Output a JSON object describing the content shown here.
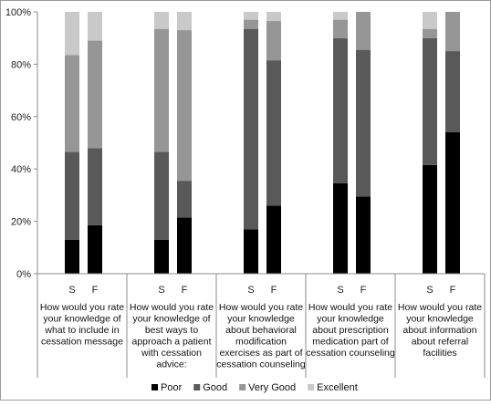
{
  "chart_data": {
    "type": "bar",
    "stacked": true,
    "y_axis": {
      "min": 0,
      "max": 100,
      "unit": "%",
      "ticks": [
        "0%",
        "20%",
        "40%",
        "60%",
        "80%",
        "100%"
      ]
    },
    "grid": false,
    "legend_position": "bottom",
    "groups": [
      {
        "label": [
          "How would you rate",
          "your knowledge of",
          "what to include in",
          "cessation message"
        ],
        "bars": [
          {
            "label": "S",
            "values": [
              13,
              33.5,
              37,
              16.5
            ]
          },
          {
            "label": "F",
            "values": [
              18.5,
              29.5,
              41,
              11
            ]
          }
        ]
      },
      {
        "label": [
          "How would you rate",
          "your knowledge of",
          "best ways to",
          "approach a patient",
          "with cessation",
          "advice:"
        ],
        "bars": [
          {
            "label": "S",
            "values": [
              13,
              33.5,
              47,
              6.5
            ]
          },
          {
            "label": "F",
            "values": [
              21.5,
              14,
              57.5,
              7
            ]
          }
        ]
      },
      {
        "label": [
          "How would you rate",
          "your knowledge",
          "about behavioral",
          "modification",
          "exercises as part of",
          "cessation counseling"
        ],
        "bars": [
          {
            "label": "S",
            "values": [
              17,
              76.5,
              3.5,
              3
            ]
          },
          {
            "label": "F",
            "values": [
              26,
              55.5,
              15,
              3.5
            ]
          }
        ]
      },
      {
        "label": [
          "How would you rate",
          "your knowledge",
          "about prescription",
          "medication part of",
          "cessation counseling"
        ],
        "bars": [
          {
            "label": "S",
            "values": [
              34.5,
              55.5,
              7,
              3
            ]
          },
          {
            "label": "F",
            "values": [
              29.5,
              56,
              14.5,
              0
            ]
          }
        ]
      },
      {
        "label": [
          "How would you rate",
          "your knowledge",
          "about information",
          "about referral",
          "facilities"
        ],
        "bars": [
          {
            "label": "S",
            "values": [
              41.5,
              48.5,
              3.5,
              6.5
            ]
          },
          {
            "label": "F",
            "values": [
              54,
              31,
              15,
              0
            ]
          }
        ]
      }
    ],
    "series": [
      {
        "name": "Poor",
        "color": "#000000"
      },
      {
        "name": "Good",
        "color": "#595959"
      },
      {
        "name": "Very Good",
        "color": "#969696"
      },
      {
        "name": "Excellent",
        "color": "#c9c9c9"
      }
    ]
  }
}
